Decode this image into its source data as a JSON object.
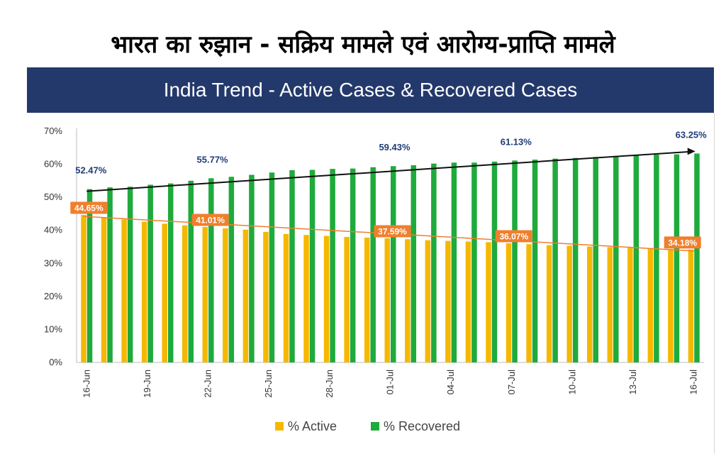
{
  "page": {
    "hindi_title": "भारत का रुझान - सक्रिय मामले एवं आरोग्य-प्राप्ति मामले",
    "banner_title": "India Trend - Active Cases & Recovered Cases"
  },
  "colors": {
    "banner": "#24396b",
    "active": "#f5b800",
    "recovered": "#1faa3c",
    "active_label_bg": "#f07f2d",
    "recovered_label": "#1f3c78",
    "trend_recovered": "#111111",
    "trend_active": "#f07f2d"
  },
  "chart_data": {
    "type": "bar",
    "title": "India Trend - Active Cases & Recovered Cases",
    "categories": [
      "16-Jun",
      "17-Jun",
      "18-Jun",
      "19-Jun",
      "20-Jun",
      "21-Jun",
      "22-Jun",
      "23-Jun",
      "24-Jun",
      "25-Jun",
      "26-Jun",
      "27-Jun",
      "28-Jun",
      "29-Jun",
      "30-Jun",
      "01-Jul",
      "02-Jul",
      "03-Jul",
      "04-Jul",
      "05-Jul",
      "06-Jul",
      "07-Jul",
      "08-Jul",
      "09-Jul",
      "10-Jul",
      "11-Jul",
      "12-Jul",
      "13-Jul",
      "14-Jul",
      "15-Jul",
      "16-Jul"
    ],
    "x_tick_labels": [
      "16-Jun",
      "19-Jun",
      "22-Jun",
      "25-Jun",
      "28-Jun",
      "01-Jul",
      "04-Jul",
      "07-Jul",
      "10-Jul",
      "13-Jul",
      "16-Jul"
    ],
    "series": [
      {
        "name": "% Active",
        "color": "#f5b800",
        "values": [
          44.65,
          44.0,
          43.3,
          42.6,
          42.0,
          41.5,
          41.01,
          40.6,
          40.2,
          39.5,
          38.9,
          38.6,
          38.3,
          38.0,
          37.8,
          37.59,
          37.3,
          37.0,
          36.8,
          36.6,
          36.4,
          36.07,
          35.8,
          35.5,
          35.3,
          35.1,
          34.9,
          34.7,
          34.5,
          34.3,
          34.18
        ]
      },
      {
        "name": "% Recovered",
        "color": "#1faa3c",
        "values": [
          52.47,
          53.0,
          53.2,
          53.8,
          54.2,
          55.0,
          55.77,
          56.2,
          56.8,
          57.5,
          58.2,
          58.3,
          58.6,
          58.7,
          59.1,
          59.43,
          59.7,
          60.2,
          60.5,
          60.5,
          60.8,
          61.13,
          61.4,
          61.7,
          61.9,
          62.2,
          62.4,
          62.6,
          62.9,
          63.0,
          63.25
        ]
      }
    ],
    "data_labels": {
      "recovered": [
        {
          "category": "16-Jun",
          "text": "52.47%"
        },
        {
          "category": "22-Jun",
          "text": "55.77%"
        },
        {
          "category": "01-Jul",
          "text": "59.43%"
        },
        {
          "category": "07-Jul",
          "text": "61.13%"
        },
        {
          "category": "16-Jul",
          "text": "63.25%"
        }
      ],
      "active": [
        {
          "category": "16-Jun",
          "text": "44.65%"
        },
        {
          "category": "22-Jun",
          "text": "41.01%"
        },
        {
          "category": "01-Jul",
          "text": "37.59%"
        },
        {
          "category": "07-Jul",
          "text": "36.07%"
        },
        {
          "category": "16-Jul",
          "text": "34.18%"
        }
      ]
    },
    "trend_lines": [
      {
        "series": "% Recovered",
        "from": 52.47,
        "to": 63.25,
        "arrow": true
      },
      {
        "series": "% Active",
        "from": 44.65,
        "to": 34.18,
        "arrow": false
      }
    ],
    "y_ticks": [
      "0%",
      "10%",
      "20%",
      "30%",
      "40%",
      "50%",
      "60%",
      "70%"
    ],
    "ylim": [
      0,
      70
    ],
    "grid": false,
    "legend_position": "bottom-center"
  }
}
